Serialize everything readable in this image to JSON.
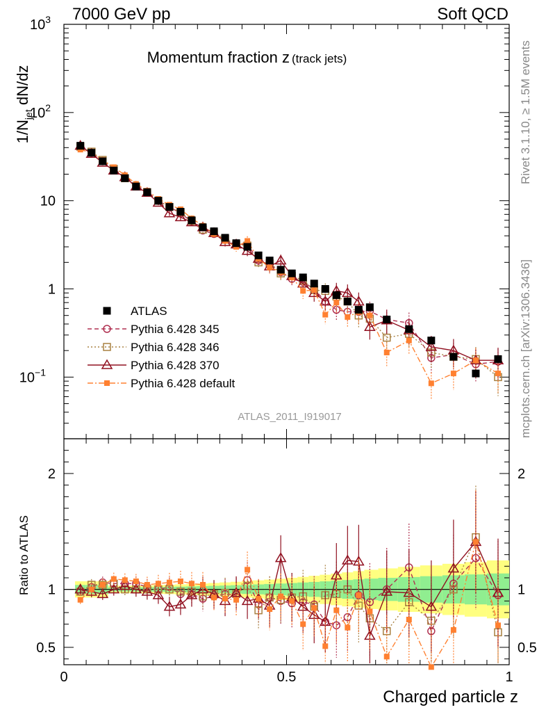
{
  "header": {
    "left": "7000 GeV pp",
    "right": "Soft QCD"
  },
  "side": {
    "rivet": "Rivet 3.1.10, ≥ 1.5M events",
    "mcplots": "mcplots.cern.ch [arXiv:1306.3436]"
  },
  "chart_data": {
    "type": "scatter",
    "title": "Momentum fraction z",
    "title_suffix": "(track jets)",
    "analysis": "ATLAS_2011_I919017",
    "xlabel": "Charged particle z",
    "ylabel_main": "1/N_jet dN/dz",
    "ylabel_ratio": "Ratio to ATLAS",
    "xlim": [
      0,
      1
    ],
    "ylim_main": [
      0.02,
      1000
    ],
    "ylim_ratio": [
      0.35,
      2.3
    ],
    "x_ticks": [
      "0",
      "0.5",
      "1"
    ],
    "y_ticks_main": [
      "10^-1",
      "1",
      "10",
      "10^2",
      "10^3"
    ],
    "y_ticks_ratio": [
      "0.5",
      "1",
      "2"
    ],
    "x": [
      0.037,
      0.062,
      0.087,
      0.112,
      0.137,
      0.162,
      0.187,
      0.212,
      0.237,
      0.262,
      0.287,
      0.312,
      0.337,
      0.362,
      0.387,
      0.412,
      0.437,
      0.462,
      0.487,
      0.512,
      0.537,
      0.562,
      0.587,
      0.612,
      0.637,
      0.662,
      0.687,
      0.725,
      0.775,
      0.825,
      0.875,
      0.925,
      0.975
    ],
    "series": [
      {
        "name": "ATLAS",
        "values": [
          42,
          35,
          28,
          22,
          18,
          14.5,
          12.5,
          10,
          8.5,
          7.5,
          6,
          5,
          4.5,
          3.8,
          3.3,
          3.0,
          2.4,
          2.1,
          1.65,
          1.5,
          1.35,
          1.15,
          1.0,
          0.85,
          0.72,
          0.58,
          0.62,
          0.45,
          0.35,
          0.26,
          0.17,
          0.11,
          0.16
        ]
      },
      {
        "name": "Pythia 6.428 345",
        "values": [
          40,
          35,
          28,
          23,
          18.5,
          15,
          12.5,
          10,
          8.5,
          7.2,
          5.8,
          4.6,
          4.2,
          3.6,
          3.2,
          3.2,
          2.1,
          1.95,
          1.55,
          1.3,
          1.2,
          1.0,
          0.72,
          0.58,
          0.55,
          0.55,
          0.56,
          0.45,
          0.41,
          0.165,
          0.18,
          0.14,
          0.15
        ]
      },
      {
        "name": "Pythia 6.428 346",
        "values": [
          41,
          36,
          29,
          23,
          18,
          14.5,
          12.5,
          10,
          8.5,
          7.4,
          5.9,
          4.7,
          4.3,
          3.7,
          3.2,
          3.1,
          2.0,
          1.95,
          1.5,
          1.4,
          1.25,
          0.97,
          0.95,
          0.82,
          0.72,
          0.5,
          0.46,
          0.28,
          0.31,
          0.19,
          0.17,
          0.16,
          0.1
        ]
      },
      {
        "name": "Pythia 6.428 370",
        "values": [
          42,
          34,
          27,
          22,
          18.5,
          14.5,
          12.3,
          9.5,
          7.2,
          6.5,
          5.7,
          5.0,
          4.3,
          3.4,
          3.2,
          2.7,
          2.2,
          1.8,
          2.1,
          1.4,
          1.15,
          0.9,
          0.72,
          0.95,
          0.9,
          0.72,
          0.37,
          0.44,
          0.34,
          0.22,
          0.2,
          0.155,
          0.155
        ]
      },
      {
        "name": "Pythia 6.428 default",
        "values": [
          38,
          35,
          29,
          24,
          19.5,
          15.5,
          13,
          10.5,
          9,
          8,
          6.3,
          5.2,
          4.2,
          3.5,
          3.0,
          3.5,
          2.2,
          1.75,
          1.55,
          1.35,
          0.95,
          0.97,
          0.51,
          0.7,
          0.48,
          0.55,
          0.5,
          0.19,
          0.26,
          0.085,
          0.11,
          0.155,
          0.11
        ]
      }
    ],
    "ratio": [
      {
        "name": "Pythia 6.428 345",
        "values": [
          0.98,
          1.02,
          1.06,
          1.05,
          1.05,
          1.05,
          1.02,
          1.0,
          1.02,
          0.96,
          0.96,
          0.92,
          0.94,
          0.96,
          0.95,
          1.08,
          0.87,
          0.93,
          0.9,
          0.88,
          0.89,
          0.87,
          0.72,
          0.69,
          0.76,
          0.95,
          0.89,
          1.0,
          1.19,
          0.64,
          1.05,
          1.27,
          0.95
        ]
      },
      {
        "name": "Pythia 6.428 346",
        "values": [
          0.98,
          1.04,
          1.04,
          1.05,
          1.0,
          1.0,
          1.0,
          1.0,
          1.0,
          0.98,
          0.98,
          0.94,
          0.96,
          0.97,
          0.96,
          1.03,
          0.82,
          0.93,
          0.91,
          0.93,
          0.94,
          0.85,
          0.95,
          0.96,
          1.0,
          0.86,
          0.75,
          0.64,
          0.89,
          0.73,
          1.0,
          1.45,
          0.63
        ]
      },
      {
        "name": "Pythia 6.428 370",
        "values": [
          1.0,
          0.98,
          0.96,
          1.0,
          1.03,
          1.0,
          0.98,
          0.95,
          0.85,
          0.87,
          0.95,
          1.0,
          0.96,
          0.9,
          0.97,
          0.9,
          0.92,
          0.86,
          1.27,
          0.93,
          0.85,
          0.78,
          0.72,
          1.12,
          1.25,
          1.24,
          0.6,
          0.98,
          0.97,
          0.85,
          1.18,
          1.41,
          0.97
        ]
      },
      {
        "name": "Pythia 6.428 default",
        "values": [
          0.91,
          1.0,
          1.04,
          1.09,
          1.08,
          1.07,
          1.04,
          1.05,
          1.06,
          1.07,
          1.05,
          1.04,
          0.93,
          0.92,
          0.91,
          1.17,
          0.92,
          0.83,
          0.94,
          0.9,
          0.7,
          0.84,
          0.51,
          0.82,
          0.67,
          0.95,
          0.81,
          0.42,
          0.74,
          0.33,
          0.65,
          1.41,
          0.69
        ]
      }
    ],
    "colors": {
      "ATLAS": "#000000",
      "Pythia 6.428 345": "#b03050",
      "Pythia 6.428 346": "#a88040",
      "Pythia 6.428 370": "#901020",
      "Pythia 6.428 default": "#ff8030",
      "band_inner": "#90ee90",
      "band_outer": "#ffff80"
    }
  }
}
